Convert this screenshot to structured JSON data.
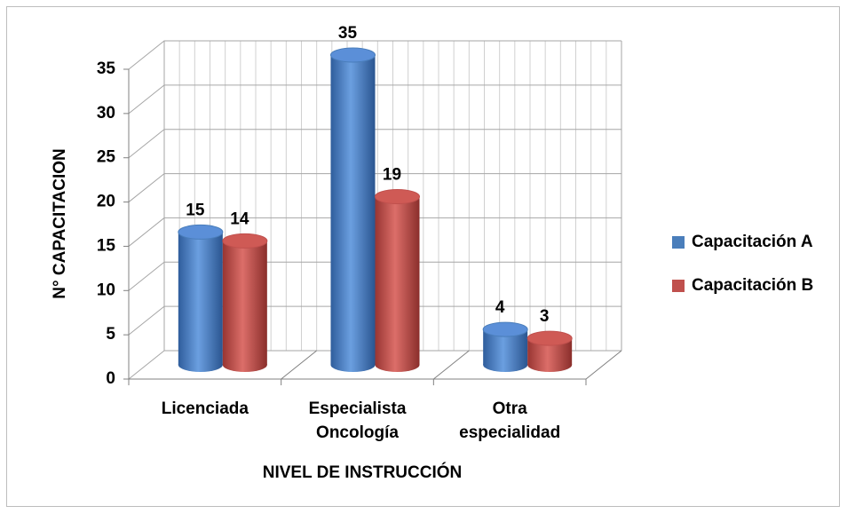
{
  "chart_data": {
    "type": "bar3d",
    "categories": [
      "Licenciada",
      "Especialista Oncología",
      "Otra especialidad"
    ],
    "series": [
      {
        "name": "Capacitación A",
        "color": "#4a7ebb",
        "values": [
          15,
          35,
          4
        ]
      },
      {
        "name": "Capacitación B",
        "color": "#c0504d",
        "values": [
          14,
          19,
          3
        ]
      }
    ],
    "xlabel": "NIVEL DE INSTRUCCIÓN",
    "ylabel": "N° CAPACITACION",
    "ylim": [
      0,
      35
    ],
    "yticks": [
      0,
      5,
      10,
      15,
      20,
      25,
      30,
      35
    ],
    "grid": true,
    "legend": "right"
  }
}
